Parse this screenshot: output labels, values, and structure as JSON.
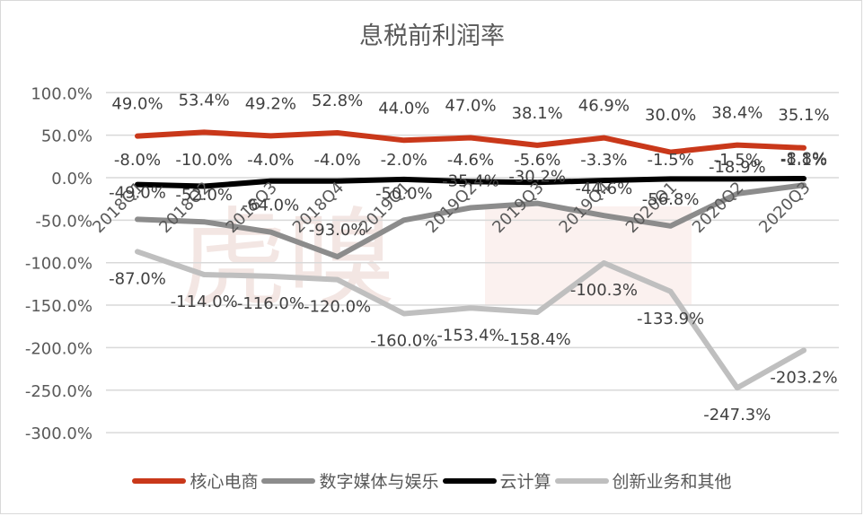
{
  "title": "息税前利润率",
  "chart_data": {
    "type": "line",
    "title": "息税前利润率",
    "xlabel": "",
    "ylabel": "",
    "ylim": [
      -300,
      100
    ],
    "yticks": [
      "100.0%",
      "50.0%",
      "0.0%",
      "-50.0%",
      "-100.0%",
      "-150.0%",
      "-200.0%",
      "-250.0%",
      "-300.0%"
    ],
    "grid": true,
    "legend_position": "bottom",
    "categories": [
      "2018Q1",
      "2018Q2",
      "2018Q3",
      "2018Q4",
      "2019Q1",
      "2019Q2",
      "2019Q3",
      "2019Q4",
      "2020Q1",
      "2020Q2",
      "2020Q3"
    ],
    "series": [
      {
        "name": "核心电商",
        "color": "#c9381a",
        "values": [
          49.0,
          53.4,
          49.2,
          52.8,
          44.0,
          47.0,
          38.1,
          46.9,
          30.0,
          38.4,
          35.1
        ]
      },
      {
        "name": "数字媒体与娱乐",
        "color": "#8c8c8c",
        "values": [
          -49.0,
          -52.0,
          -64.0,
          -93.0,
          -50.0,
          -35.4,
          -30.2,
          -44.6,
          -56.8,
          -18.9,
          -8.8
        ]
      },
      {
        "name": "云计算",
        "color": "#000000",
        "values": [
          -8.0,
          -10.0,
          -4.0,
          -4.0,
          -2.0,
          -4.6,
          -5.6,
          -3.3,
          -1.5,
          -1.5,
          -1.1
        ]
      },
      {
        "name": "创新业务和其他",
        "color": "#bfbfbf",
        "values": [
          -87.0,
          -114.0,
          -116.0,
          -120.0,
          -160.0,
          -153.4,
          -158.4,
          -100.3,
          -133.9,
          -247.3,
          -203.2
        ]
      }
    ]
  },
  "legend": [
    {
      "label": "核心电商",
      "color": "#c9381a"
    },
    {
      "label": "数字媒体与娱乐",
      "color": "#8c8c8c"
    },
    {
      "label": "云计算",
      "color": "#000000"
    },
    {
      "label": "创新业务和其他",
      "color": "#bfbfbf"
    }
  ],
  "watermark": "虎嗅"
}
